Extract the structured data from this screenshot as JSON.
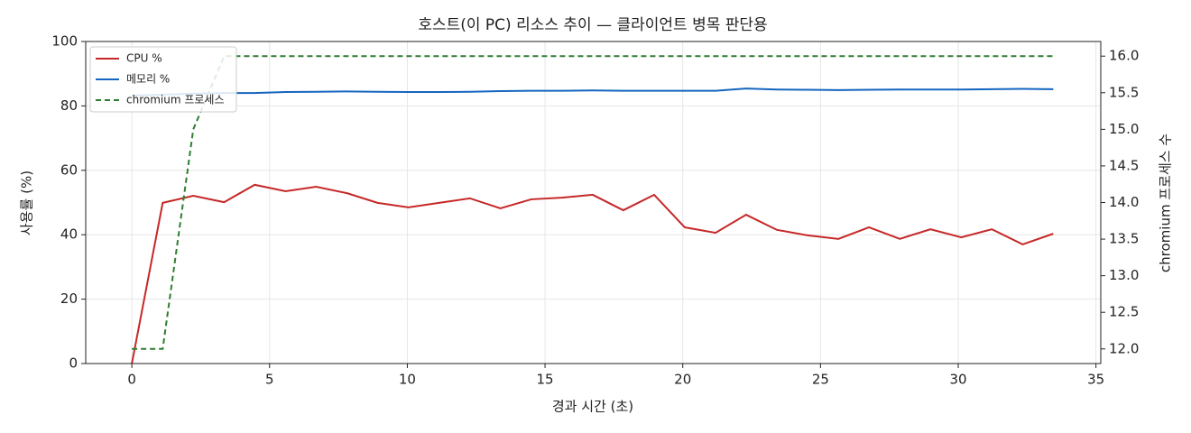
{
  "chart_data": {
    "type": "line",
    "title": "호스트(이 PC) 리소스 추이 — 클라이언트 병목 판단용",
    "x_label": "경과 시간 (초)",
    "y_label": "사용률 (%)",
    "y2_label": "chromium 프로세스 수",
    "x": [
      0,
      1.12,
      2.23,
      3.35,
      4.46,
      5.58,
      6.69,
      7.81,
      8.92,
      10.04,
      11.15,
      12.27,
      13.38,
      14.5,
      15.61,
      16.73,
      17.84,
      18.96,
      20.07,
      21.19,
      22.3,
      23.42,
      24.53,
      25.65,
      26.76,
      27.88,
      28.99,
      30.11,
      31.22,
      32.34,
      33.45
    ],
    "series": [
      {
        "name": "CPU %",
        "color": "#c62828",
        "dash": false,
        "values": [
          0,
          49.9,
          52.1,
          50.1,
          55.5,
          53.5,
          54.9,
          52.9,
          49.9,
          48.5,
          49.9,
          51.3,
          48.2,
          51.0,
          51.5,
          52.4,
          47.6,
          52.4,
          42.3,
          40.6,
          46.2,
          41.5,
          39.8,
          38.7,
          42.3,
          38.7,
          41.7,
          39.2,
          41.7,
          37.0,
          40.3
        ]
      },
      {
        "name": "메모리 %",
        "color": "#1565c0",
        "dash": false,
        "values": [
          83.2,
          83.5,
          83.8,
          84.0,
          84.0,
          84.3,
          84.4,
          84.5,
          84.4,
          84.3,
          84.3,
          84.4,
          84.6,
          84.7,
          84.7,
          84.8,
          84.7,
          84.7,
          84.7,
          84.7,
          85.4,
          85.1,
          85.0,
          84.9,
          85.0,
          85.1,
          85.1,
          85.1,
          85.2,
          85.3,
          85.2
        ]
      },
      {
        "name": "chromium 프로세스",
        "color": "#2e7d32",
        "dash": true,
        "axis": "y2",
        "values": [
          12,
          12,
          15,
          16,
          16,
          16,
          16,
          16,
          16,
          16,
          16,
          16,
          16,
          16,
          16,
          16,
          16,
          16,
          16,
          16,
          16,
          16,
          16,
          16,
          16,
          16,
          16,
          16,
          16,
          16,
          16
        ]
      }
    ],
    "xlim": [
      -1.675,
      35.175
    ],
    "xticks": [
      0,
      5,
      10,
      15,
      20,
      25,
      30,
      35
    ],
    "ylim": [
      0,
      100
    ],
    "yticks": [
      0,
      20,
      40,
      60,
      80,
      100
    ],
    "y2lim": [
      11.8,
      16.2
    ],
    "y2ticks": [
      {
        "value": 12,
        "label": "12.0"
      },
      12.5,
      {
        "value": 13,
        "label": "13.0"
      },
      13.5,
      {
        "value": 14,
        "label": "14.0"
      },
      14.5,
      {
        "value": 15,
        "label": "15.0"
      },
      15.5,
      {
        "value": 16,
        "label": "16.0"
      }
    ],
    "grid": true,
    "legend": "upper-left"
  }
}
